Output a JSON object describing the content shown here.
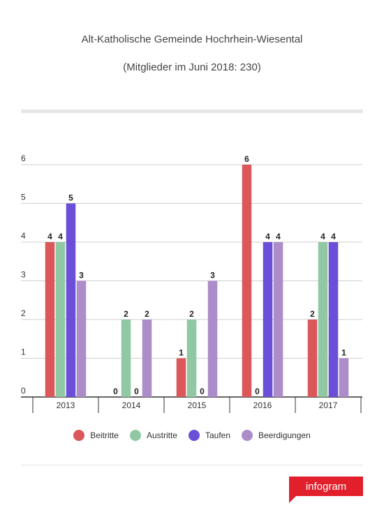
{
  "header": {
    "title": "Alt-Katholische Gemeinde Hochrhein-Wiesental",
    "subtitle": "(Mitglieder im Juni 2018: 230)"
  },
  "brand": {
    "label": "infogram",
    "color": "#e2202c"
  },
  "chart_data": {
    "type": "bar",
    "categories": [
      "2013",
      "2014",
      "2015",
      "2016",
      "2017"
    ],
    "series": [
      {
        "name": "Beitritte",
        "color": "#dc5759",
        "values": [
          4,
          0,
          1,
          6,
          2
        ]
      },
      {
        "name": "Austritte",
        "color": "#8fc8a3",
        "values": [
          4,
          2,
          2,
          0,
          4
        ]
      },
      {
        "name": "Taufen",
        "color": "#6c4fd9",
        "values": [
          5,
          0,
          0,
          4,
          4
        ]
      },
      {
        "name": "Beerdigungen",
        "color": "#ac8cc9",
        "values": [
          3,
          2,
          3,
          4,
          1
        ]
      }
    ],
    "yticks": [
      "0",
      "1",
      "2",
      "3",
      "4",
      "5",
      "6"
    ],
    "ylim": [
      0,
      6
    ],
    "grid": true,
    "legend_position": "bottom"
  }
}
